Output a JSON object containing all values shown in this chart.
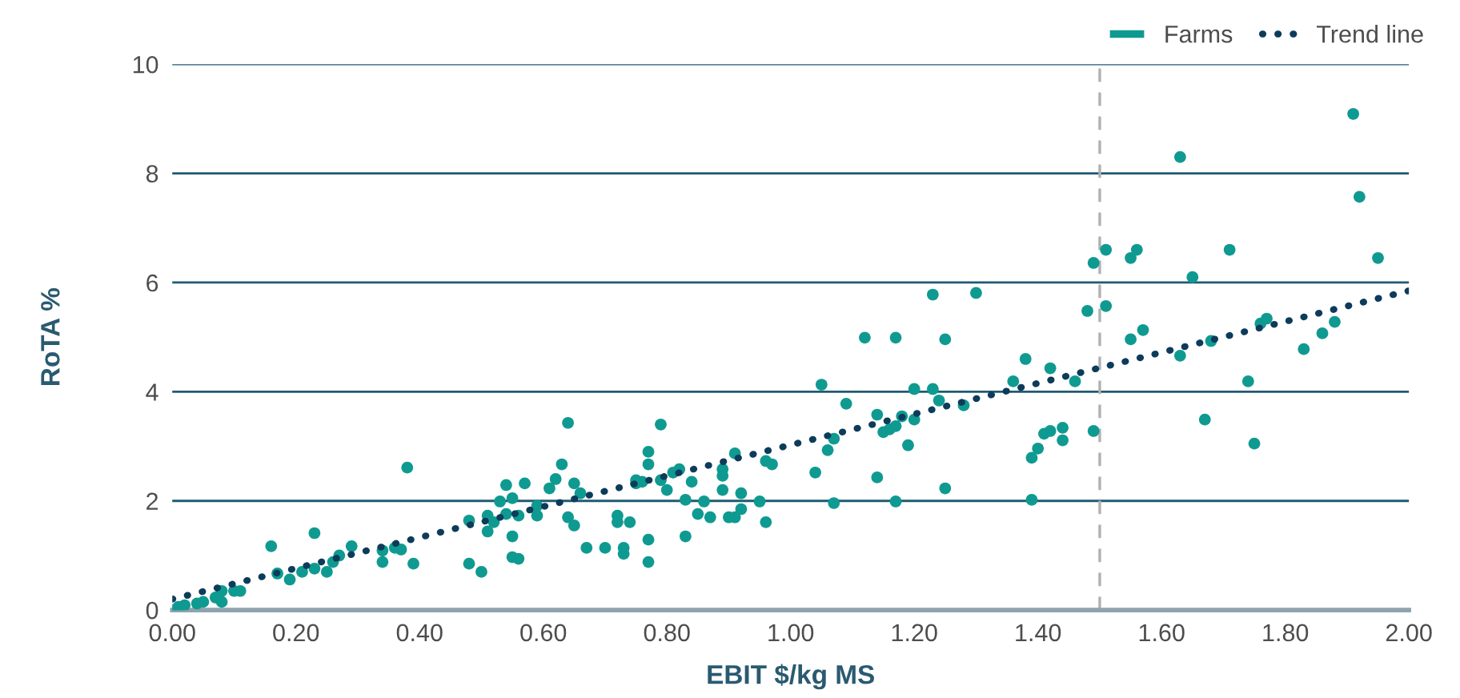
{
  "chart_data": {
    "type": "scatter",
    "xlabel": "EBIT $/kg MS",
    "ylabel": "RoTA %",
    "xlim": [
      0,
      2
    ],
    "ylim": [
      0,
      10
    ],
    "xticks": [
      {
        "value": 0,
        "label": "0.00"
      },
      {
        "value": 0.2,
        "label": "0.20"
      },
      {
        "value": 0.4,
        "label": "0.40"
      },
      {
        "value": 0.6,
        "label": "0.60"
      },
      {
        "value": 0.8,
        "label": "0.80"
      },
      {
        "value": 1.0,
        "label": "1.00"
      },
      {
        "value": 1.2,
        "label": "1.20"
      },
      {
        "value": 1.4,
        "label": "1.40"
      },
      {
        "value": 1.6,
        "label": "1.60"
      },
      {
        "value": 1.8,
        "label": "1.80"
      },
      {
        "value": 2.0,
        "label": "2.00"
      }
    ],
    "yticks": [
      0,
      2,
      4,
      6,
      8,
      10
    ],
    "grid": "y",
    "legend": "top right",
    "ref_lines": [
      {
        "axis": "x",
        "value": 1.5,
        "color": "#b0b0b0",
        "line_style": "dashed"
      }
    ],
    "series": [
      {
        "name": "Farms",
        "marker": "circle",
        "color": "#0f9a91",
        "x": [
          0.0,
          0.01,
          0.01,
          0.02,
          0.04,
          0.05,
          0.07,
          0.08,
          0.08,
          0.1,
          0.11,
          0.16,
          0.17,
          0.19,
          0.21,
          0.23,
          0.23,
          0.25,
          0.26,
          0.27,
          0.29,
          0.34,
          0.34,
          0.36,
          0.37,
          0.38,
          0.39,
          0.48,
          0.48,
          0.5,
          0.51,
          0.51,
          0.52,
          0.53,
          0.54,
          0.54,
          0.55,
          0.55,
          0.56,
          0.55,
          0.56,
          0.57,
          0.59,
          0.59,
          0.61,
          0.62,
          0.63,
          0.64,
          0.64,
          0.65,
          0.65,
          0.66,
          0.67,
          0.7,
          0.72,
          0.72,
          0.73,
          0.73,
          0.74,
          0.75,
          0.75,
          0.76,
          0.77,
          0.77,
          0.77,
          0.77,
          0.79,
          0.79,
          0.8,
          0.81,
          0.82,
          0.83,
          0.83,
          0.84,
          0.85,
          0.86,
          0.87,
          0.89,
          0.89,
          0.89,
          0.9,
          0.91,
          0.91,
          0.92,
          0.92,
          0.95,
          0.96,
          0.96,
          0.97,
          1.04,
          1.05,
          1.06,
          1.07,
          1.07,
          1.09,
          1.12,
          1.14,
          1.14,
          1.15,
          1.16,
          1.17,
          1.17,
          1.17,
          1.18,
          1.19,
          1.2,
          1.2,
          1.23,
          1.23,
          1.24,
          1.25,
          1.25,
          1.3,
          1.28,
          1.36,
          1.38,
          1.39,
          1.39,
          1.4,
          1.41,
          1.42,
          1.42,
          1.44,
          1.44,
          1.46,
          1.48,
          1.49,
          1.49,
          1.51,
          1.51,
          1.55,
          1.56,
          1.55,
          1.57,
          1.63,
          1.63,
          1.65,
          1.67,
          1.68,
          1.71,
          1.74,
          1.75,
          1.76,
          1.77,
          1.83,
          1.86,
          1.88,
          1.91,
          1.92,
          1.95
        ],
        "values": [
          0.0,
          0.03,
          0.06,
          0.09,
          0.12,
          0.15,
          0.23,
          0.35,
          0.15,
          0.35,
          0.35,
          1.17,
          0.67,
          0.56,
          0.7,
          1.41,
          0.76,
          0.7,
          0.88,
          1.0,
          1.17,
          0.88,
          1.09,
          1.14,
          1.11,
          2.61,
          0.85,
          0.85,
          1.64,
          0.7,
          1.44,
          1.73,
          1.61,
          1.99,
          1.76,
          2.29,
          1.35,
          0.97,
          0.94,
          2.05,
          1.73,
          2.32,
          1.91,
          1.73,
          2.23,
          2.4,
          2.67,
          3.43,
          1.7,
          1.55,
          2.32,
          2.14,
          1.14,
          1.14,
          1.61,
          1.73,
          1.14,
          1.03,
          1.61,
          2.32,
          2.38,
          2.35,
          0.88,
          1.29,
          2.67,
          2.9,
          3.4,
          2.38,
          2.2,
          2.52,
          2.58,
          2.02,
          1.35,
          2.35,
          1.76,
          1.99,
          1.7,
          2.46,
          2.2,
          2.58,
          1.7,
          1.7,
          2.87,
          2.14,
          1.85,
          1.99,
          2.73,
          1.61,
          2.67,
          2.52,
          4.13,
          2.93,
          1.96,
          3.14,
          3.78,
          4.99,
          3.58,
          2.43,
          3.26,
          3.31,
          3.37,
          1.99,
          4.99,
          3.55,
          3.02,
          4.05,
          3.49,
          4.05,
          5.78,
          3.84,
          4.96,
          2.23,
          5.81,
          3.75,
          4.19,
          4.6,
          2.02,
          2.79,
          2.96,
          3.23,
          3.28,
          4.43,
          3.11,
          3.34,
          4.19,
          5.48,
          3.28,
          6.36,
          6.6,
          5.57,
          6.45,
          6.6,
          4.96,
          5.13,
          8.3,
          4.66,
          6.1,
          3.49,
          4.93,
          6.6,
          4.19,
          3.05,
          5.25,
          5.34,
          4.78,
          5.07,
          5.28,
          9.09,
          7.57,
          6.45
        ]
      },
      {
        "name": "Trend line",
        "type": "line",
        "line_style": "dotted",
        "color": "#0d3b5a",
        "x": [
          0,
          2
        ],
        "values": [
          0.2,
          5.85
        ]
      }
    ]
  }
}
